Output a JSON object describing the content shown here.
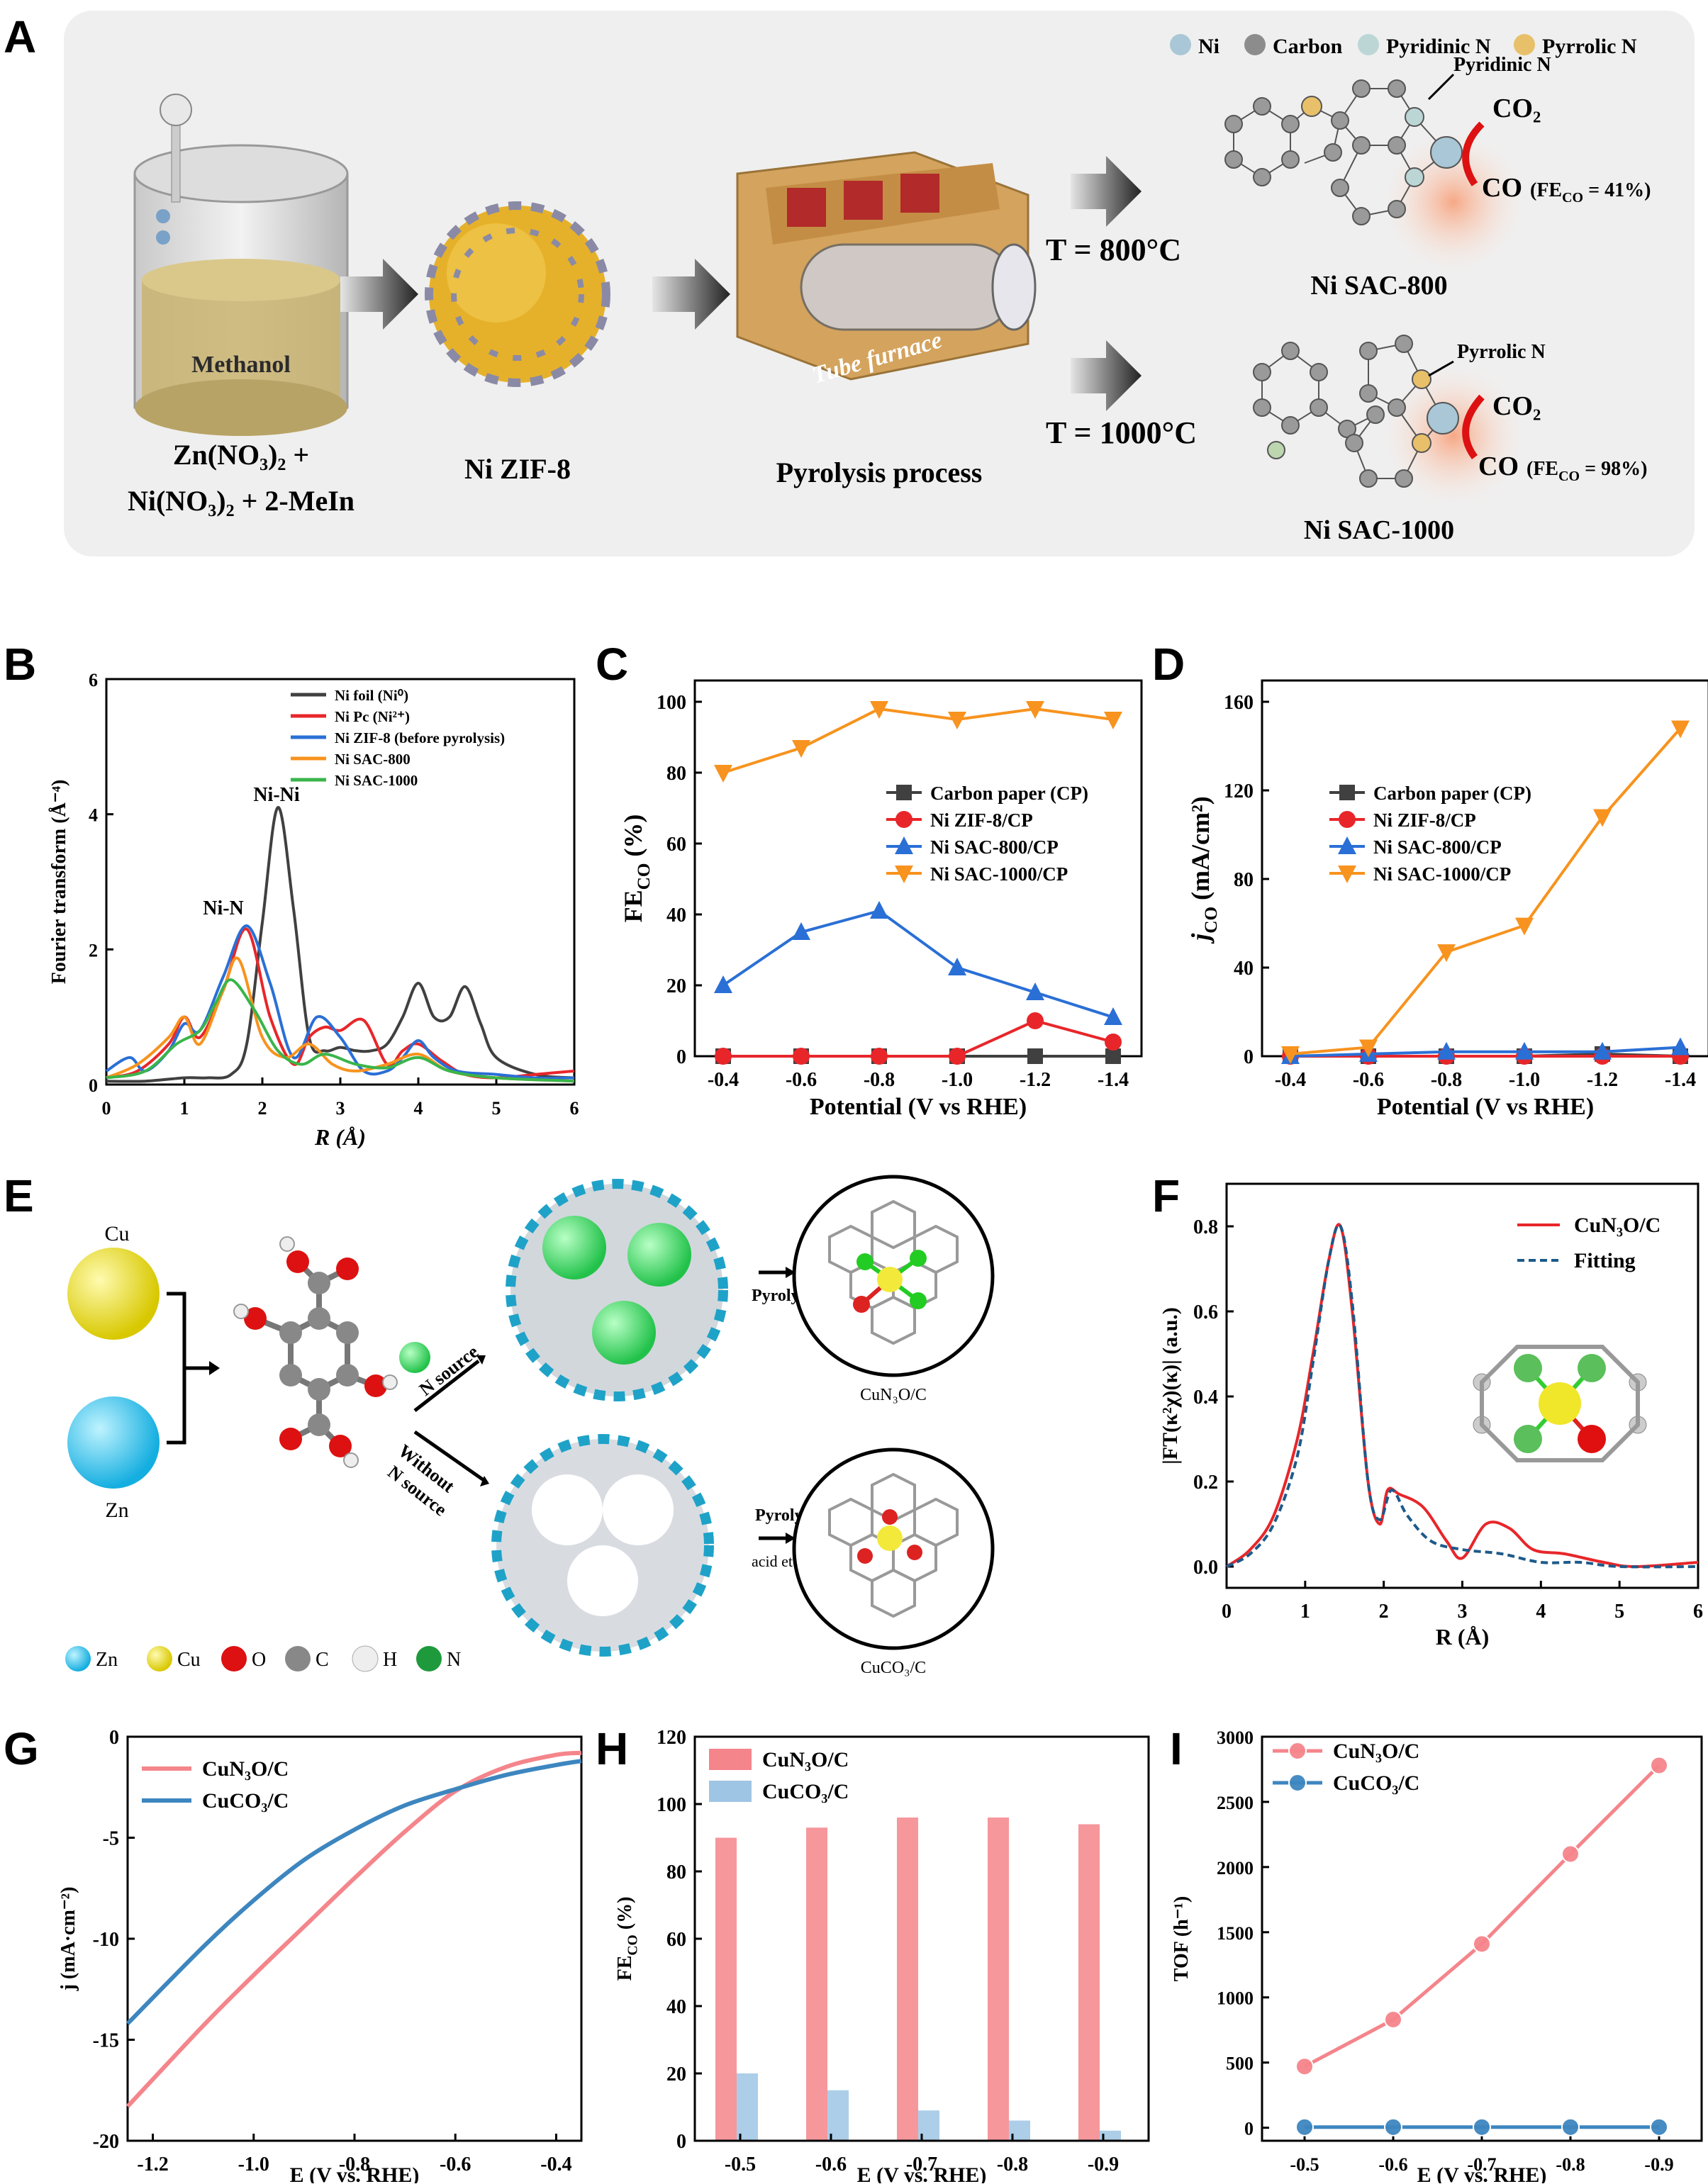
{
  "panel_labels": {
    "A": "A",
    "B": "B",
    "C": "C",
    "D": "D",
    "E": "E",
    "F": "F",
    "G": "G",
    "H": "H",
    "I": "I"
  },
  "colors": {
    "orange": "#f7931e",
    "red": "#e8262a",
    "blue": "#2a6fd6",
    "dark": "#404040",
    "green": "#3ab54a",
    "pink": "#f4858b",
    "lightblue": "#9ec5e4",
    "steel": "#3d86bf"
  },
  "panelA": {
    "legend": [
      "Ni",
      "Carbon",
      "Pyridinic  N",
      "Pyrrolic  N"
    ],
    "beaker_label": "Methanol",
    "precursor_line1": "Zn(NO₃)₂ +",
    "precursor_line2": "Ni(NO₃)₂ + 2-MeIn",
    "zif_label": "Ni ZIF-8",
    "furnace_text": "Tube furnace",
    "pyrolysis_label": "Pyrolysis process",
    "temp_800": "T = 800°C",
    "temp_1000": "T = 1000°C",
    "pyridinic_note": "Pyridinic N",
    "pyrrolic_note": "Pyrrolic N",
    "co2": "CO₂",
    "co_800": "CO",
    "fe_800": "(FE",
    "fe_800_sub": "CO",
    "fe_800_val": " = 41%)",
    "co_1000": "CO",
    "fe_1000": "(FE",
    "fe_1000_sub": "CO",
    "fe_1000_val": " = 98%)",
    "sac800": "Ni SAC-800",
    "sac1000": "Ni SAC-1000"
  },
  "panelE": {
    "cu": "Cu",
    "zn": "Zn",
    "n_source": "N source",
    "without_line1": "Without",
    "without_line2": "N source",
    "pyrolysis": "Pyrolysis",
    "pyrolysis2": "Pyrolysis",
    "acid_etching": "acid etching",
    "product1": "CuN₃O/C",
    "product2": "CuCO₃/C",
    "legend": [
      "Zn",
      "Cu",
      "O",
      "C",
      "H",
      "N"
    ]
  },
  "chart_data": [
    {
      "id": "B",
      "type": "line",
      "xlabel": "R (Å)",
      "ylabel": "Fourier transform (Å⁻⁴)",
      "xlim": [
        0,
        6
      ],
      "ylim": [
        0,
        6
      ],
      "xticks": [
        "0",
        "1",
        "2",
        "3",
        "4",
        "5",
        "6"
      ],
      "yticks": [
        "0",
        "2",
        "4",
        "6"
      ],
      "annotations": [
        "Ni-Ni",
        "Ni-N"
      ],
      "series": [
        {
          "name": "Ni foil (Ni⁰)",
          "x": [
            0,
            0.5,
            1.0,
            1.3,
            1.6,
            1.8,
            2.0,
            2.2,
            2.4,
            2.6,
            2.8,
            3.0,
            3.2,
            3.4,
            3.6,
            3.8,
            4.0,
            4.2,
            4.4,
            4.6,
            4.8,
            5.0,
            5.5,
            6.0
          ],
          "y": [
            0.05,
            0.05,
            0.1,
            0.1,
            0.15,
            0.6,
            2.4,
            4.1,
            2.6,
            0.7,
            0.5,
            0.55,
            0.5,
            0.5,
            0.6,
            1.0,
            1.5,
            1.0,
            1.0,
            1.45,
            0.9,
            0.4,
            0.15,
            0.1
          ]
        },
        {
          "name": "Ni Pc (Ni²⁺)",
          "x": [
            0,
            0.4,
            0.8,
            1.0,
            1.2,
            1.5,
            1.8,
            2.1,
            2.4,
            2.6,
            2.8,
            3.0,
            3.3,
            3.6,
            3.8,
            4.0,
            4.3,
            4.6,
            5.0,
            5.5,
            6.0
          ],
          "y": [
            0.1,
            0.2,
            0.6,
            1.0,
            0.7,
            1.4,
            2.3,
            1.0,
            0.3,
            0.7,
            0.85,
            0.8,
            0.95,
            0.3,
            0.5,
            0.6,
            0.35,
            0.15,
            0.1,
            0.15,
            0.2
          ]
        },
        {
          "name": "Ni ZIF-8 (before pyrolysis)",
          "x": [
            0,
            0.3,
            0.5,
            0.8,
            1.0,
            1.2,
            1.5,
            1.8,
            2.1,
            2.4,
            2.7,
            3.0,
            3.3,
            3.6,
            3.8,
            4.0,
            4.2,
            4.5,
            5.0,
            5.5,
            6.0
          ],
          "y": [
            0.2,
            0.4,
            0.2,
            0.5,
            0.9,
            0.8,
            1.6,
            2.35,
            1.5,
            0.4,
            1.0,
            0.7,
            0.2,
            0.2,
            0.4,
            0.65,
            0.4,
            0.2,
            0.15,
            0.1,
            0.1
          ]
        },
        {
          "name": "Ni SAC-800",
          "x": [
            0,
            0.4,
            0.8,
            1.0,
            1.2,
            1.5,
            1.7,
            2.0,
            2.3,
            2.6,
            2.9,
            3.2,
            3.6,
            4.0,
            4.4,
            5.0,
            6.0
          ],
          "y": [
            0.1,
            0.3,
            0.7,
            1.0,
            0.6,
            1.4,
            1.85,
            0.7,
            0.4,
            0.6,
            0.3,
            0.2,
            0.3,
            0.45,
            0.2,
            0.1,
            0.05
          ]
        },
        {
          "name": "Ni SAC-1000",
          "x": [
            0,
            0.5,
            0.9,
            1.2,
            1.4,
            1.6,
            1.9,
            2.2,
            2.5,
            2.8,
            3.2,
            3.6,
            4.0,
            4.4,
            5.0,
            6.0
          ],
          "y": [
            0.1,
            0.2,
            0.6,
            0.8,
            1.2,
            1.55,
            1.1,
            0.5,
            0.3,
            0.45,
            0.3,
            0.25,
            0.4,
            0.2,
            0.1,
            0.05
          ]
        }
      ]
    },
    {
      "id": "C",
      "type": "line",
      "xlabel": "Potential (V vs RHE)",
      "ylabel": "FE",
      "ylabel_sub": "CO",
      "ylabel_tail": " (%)",
      "categories": [
        "-0.4",
        "-0.6",
        "-0.8",
        "-1.0",
        "-1.2",
        "-1.4"
      ],
      "ylim": [
        0,
        100
      ],
      "yticks": [
        "0",
        "20",
        "40",
        "60",
        "80",
        "100"
      ],
      "series": [
        {
          "name": "Carbon paper (CP)",
          "values": [
            0,
            0,
            0,
            0,
            0,
            0
          ]
        },
        {
          "name": "Ni ZIF-8/CP",
          "values": [
            0,
            0,
            0,
            0,
            10,
            4
          ]
        },
        {
          "name": "Ni SAC-800/CP",
          "values": [
            20,
            35,
            41,
            25,
            18,
            11
          ]
        },
        {
          "name": "Ni SAC-1000/CP",
          "values": [
            80,
            87,
            98,
            95,
            98,
            95
          ]
        }
      ]
    },
    {
      "id": "D",
      "type": "line",
      "xlabel": "Potential (V vs RHE)",
      "ylabel": "j",
      "ylabel_sub": "CO",
      "ylabel_tail": " (mA/cm²)",
      "categories": [
        "-0.4",
        "-0.6",
        "-0.8",
        "-1.0",
        "-1.2",
        "-1.4"
      ],
      "ylim": [
        0,
        160
      ],
      "yticks": [
        "0",
        "40",
        "80",
        "120",
        "160"
      ],
      "series": [
        {
          "name": "Carbon paper (CP)",
          "values": [
            0,
            0,
            0,
            0,
            1,
            0
          ]
        },
        {
          "name": "Ni ZIF-8/CP",
          "values": [
            0,
            0,
            0,
            0,
            0,
            0
          ]
        },
        {
          "name": "Ni SAC-800/CP",
          "values": [
            0,
            1,
            2,
            2,
            2,
            4
          ]
        },
        {
          "name": "Ni SAC-1000/CP",
          "values": [
            1,
            4,
            47,
            59,
            108,
            148
          ]
        }
      ]
    },
    {
      "id": "F",
      "type": "line",
      "xlabel": "R (Å)",
      "ylabel": "|FT(κ²χ)(κ)| (a.u.)",
      "xlim": [
        0,
        6
      ],
      "ylim": [
        -0.05,
        0.9
      ],
      "xticks": [
        "0",
        "1",
        "2",
        "3",
        "4",
        "5",
        "6"
      ],
      "yticks": [
        "0.0",
        "0.2",
        "0.4",
        "0.6",
        "0.8"
      ],
      "series": [
        {
          "name": "CuN₃O/C",
          "x": [
            0,
            0.3,
            0.6,
            0.9,
            1.1,
            1.3,
            1.45,
            1.6,
            1.8,
            1.95,
            2.05,
            2.2,
            2.5,
            2.8,
            3.0,
            3.3,
            3.6,
            3.9,
            4.3,
            4.8,
            5.2,
            6.0
          ],
          "y": [
            0,
            0.04,
            0.12,
            0.3,
            0.5,
            0.72,
            0.8,
            0.6,
            0.2,
            0.1,
            0.18,
            0.17,
            0.14,
            0.06,
            0.02,
            0.1,
            0.09,
            0.04,
            0.03,
            0.01,
            0.0,
            0.01
          ]
        },
        {
          "name": "Fitting",
          "x": [
            0,
            0.3,
            0.6,
            0.9,
            1.1,
            1.3,
            1.45,
            1.6,
            1.8,
            1.95,
            2.1,
            2.3,
            2.6,
            3.0,
            3.5,
            4.0,
            4.5,
            5.0,
            6.0
          ],
          "y": [
            0,
            0.03,
            0.1,
            0.26,
            0.48,
            0.72,
            0.8,
            0.62,
            0.2,
            0.11,
            0.18,
            0.12,
            0.06,
            0.04,
            0.03,
            0.01,
            0.01,
            0.0,
            0.0
          ]
        }
      ]
    },
    {
      "id": "G",
      "type": "line",
      "xlabel": "E (V vs. RHE)",
      "ylabel": "j (mA·cm⁻²)",
      "xlim": [
        -1.25,
        -0.35
      ],
      "ylim": [
        -20,
        0
      ],
      "xticks": [
        "-1.2",
        "-1.0",
        "-0.8",
        "-0.6",
        "-0.4"
      ],
      "yticks": [
        "-20",
        "-15",
        "-10",
        "-5",
        "0"
      ],
      "series": [
        {
          "name": "CuN₃O/C",
          "x": [
            -1.25,
            -1.1,
            -1.0,
            -0.9,
            -0.8,
            -0.7,
            -0.6,
            -0.5,
            -0.4,
            -0.35
          ],
          "y": [
            -18.3,
            -14.3,
            -11.8,
            -9.4,
            -7.0,
            -4.7,
            -2.7,
            -1.5,
            -0.9,
            -0.8
          ]
        },
        {
          "name": "CuCO₃/C",
          "x": [
            -1.25,
            -1.1,
            -1.0,
            -0.9,
            -0.8,
            -0.7,
            -0.6,
            -0.5,
            -0.4,
            -0.35
          ],
          "y": [
            -14.2,
            -10.4,
            -8.1,
            -6.1,
            -4.6,
            -3.4,
            -2.6,
            -1.9,
            -1.4,
            -1.2
          ]
        }
      ]
    },
    {
      "id": "H",
      "type": "bar",
      "xlabel": "E (V vs. RHE)",
      "ylabel": "FE",
      "ylabel_sub": "CO",
      "ylabel_tail": " (%)",
      "categories": [
        "-0.5",
        "-0.6",
        "-0.7",
        "-0.8",
        "-0.9"
      ],
      "ylim": [
        0,
        120
      ],
      "yticks": [
        "0",
        "20",
        "40",
        "60",
        "80",
        "100",
        "120"
      ],
      "series": [
        {
          "name": "CuN₃O/C",
          "values": [
            90,
            93,
            96,
            96,
            94
          ]
        },
        {
          "name": "CuCO₃/C",
          "values": [
            20,
            15,
            9,
            6,
            3
          ]
        }
      ]
    },
    {
      "id": "I",
      "type": "line",
      "xlabel": "E (V vs. RHE)",
      "ylabel": "TOF (h⁻¹)",
      "categories": [
        "-0.5",
        "-0.6",
        "-0.7",
        "-0.8",
        "-0.9"
      ],
      "ylim": [
        -100,
        3000
      ],
      "yticks": [
        "0",
        "500",
        "1000",
        "1500",
        "2000",
        "2500",
        "3000"
      ],
      "series": [
        {
          "name": "CuN₃O/C",
          "values": [
            470,
            830,
            1410,
            2100,
            2780
          ]
        },
        {
          "name": "CuCO₃/C",
          "values": [
            5,
            5,
            5,
            5,
            5
          ]
        }
      ]
    }
  ]
}
